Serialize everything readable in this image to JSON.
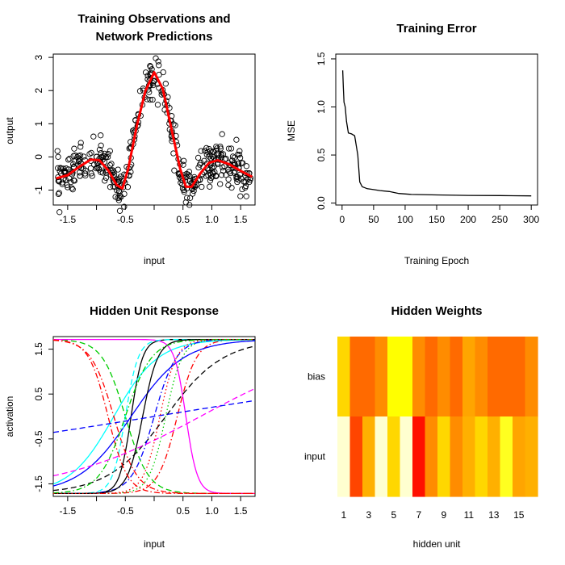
{
  "chart_data": [
    {
      "type": "scatter",
      "title_lines": [
        "Training Observations and",
        "Network Predictions"
      ],
      "xlabel": "input",
      "ylabel": "output",
      "xlim": [
        -1.75,
        1.75
      ],
      "ylim": [
        -1.45,
        3.1
      ],
      "xticks": [
        -1.5,
        -1.0,
        -0.5,
        0.0,
        0.5,
        1.0,
        1.5
      ],
      "xtick_labels": [
        "-1.5",
        "",
        "-0.5",
        "",
        "0.5",
        "1.0",
        "1.5"
      ],
      "yticks": [
        -1,
        0,
        1,
        2,
        3
      ],
      "ytick_labels": [
        "-1",
        "0",
        "1",
        "2",
        "3"
      ],
      "series": [
        {
          "kind": "prediction-line",
          "color": "#ff0000",
          "x": [
            -1.7,
            -1.5,
            -1.3,
            -1.1,
            -0.95,
            -0.8,
            -0.65,
            -0.55,
            -0.45,
            -0.3,
            -0.15,
            0.0,
            0.15,
            0.3,
            0.45,
            0.55,
            0.65,
            0.8,
            0.95,
            1.1,
            1.3,
            1.5,
            1.7
          ],
          "y": [
            -0.65,
            -0.55,
            -0.3,
            -0.08,
            -0.1,
            -0.4,
            -0.85,
            -0.95,
            -0.35,
            0.95,
            2.0,
            2.55,
            2.05,
            0.85,
            -0.35,
            -0.9,
            -0.9,
            -0.5,
            -0.18,
            -0.1,
            -0.22,
            -0.42,
            -0.6
          ]
        }
      ]
    },
    {
      "type": "line",
      "title": "Training Error",
      "xlabel": "Training Epoch",
      "ylabel": "MSE",
      "xlim": [
        -10,
        310
      ],
      "ylim": [
        -0.02,
        1.55
      ],
      "xticks": [
        0,
        50,
        100,
        150,
        200,
        250,
        300
      ],
      "yticks": [
        0.0,
        0.5,
        1.0,
        1.5
      ],
      "ytick_labels": [
        "0.0",
        "0.5",
        "1.0",
        "1.5"
      ],
      "x": [
        1,
        2,
        3,
        5,
        7,
        10,
        15,
        20,
        25,
        28,
        32,
        40,
        50,
        60,
        75,
        90,
        110,
        150,
        200,
        250,
        300
      ],
      "y": [
        1.38,
        1.2,
        1.05,
        1.0,
        0.85,
        0.73,
        0.72,
        0.7,
        0.5,
        0.22,
        0.17,
        0.15,
        0.14,
        0.13,
        0.12,
        0.1,
        0.09,
        0.085,
        0.08,
        0.078,
        0.075
      ]
    },
    {
      "type": "line",
      "title": "Hidden Unit Response",
      "xlabel": "input",
      "ylabel": "activation",
      "xlim": [
        -1.75,
        1.75
      ],
      "ylim": [
        -1.78,
        1.78
      ],
      "xticks": [
        -1.5,
        -1.0,
        -0.5,
        0.0,
        0.5,
        1.0,
        1.5
      ],
      "xtick_labels": [
        "-1.5",
        "",
        "-0.5",
        "",
        "0.5",
        "1.0",
        "1.5"
      ],
      "yticks": [
        -1.5,
        -0.5,
        0.5,
        1.5
      ],
      "ytick_labels": [
        "-1.5",
        "-0.5",
        "0.5",
        "1.5"
      ],
      "curves": [
        {
          "color": "#000000",
          "dash": "solid",
          "slope": 5.0,
          "center": -0.4
        },
        {
          "color": "#ff0000",
          "dash": "dashdot",
          "slope": 3.0,
          "center": 0.4
        },
        {
          "color": "#00cd00",
          "dash": "dashed",
          "slope": -2.5,
          "center": -0.5
        },
        {
          "color": "#0000ff",
          "dash": "solid",
          "slope": 1.1,
          "center": -0.4
        },
        {
          "color": "#00ffff",
          "dash": "solid",
          "slope": 1.3,
          "center": -0.7
        },
        {
          "color": "#ff00ff",
          "dash": "solid",
          "slope": -5.0,
          "center": 0.55
        },
        {
          "color": "#000000",
          "dash": "dashed",
          "slope": 1.0,
          "center": 0.2
        },
        {
          "color": "#ff0000",
          "dash": "dashdot",
          "slope": -2.5,
          "center": -0.7
        },
        {
          "color": "#00cd00",
          "dash": "dotted",
          "slope": 3.5,
          "center": 0.2
        },
        {
          "color": "#0000ff",
          "dash": "dashdot",
          "slope": 2.6,
          "center": 0.0
        },
        {
          "color": "#00ffff",
          "dash": "dashed",
          "slope": 4.5,
          "center": -0.5
        },
        {
          "color": "#ff00ff",
          "dash": "dashed",
          "slope": 0.4,
          "center": 0.8
        },
        {
          "color": "#000000",
          "dash": "solid",
          "slope": 3.8,
          "center": -0.2
        },
        {
          "color": "#ff0000",
          "dash": "dashdot",
          "slope": -3.0,
          "center": -0.8
        },
        {
          "color": "#00cd00",
          "dash": "dashdot",
          "slope": 2.2,
          "center": -0.5
        },
        {
          "color": "#0000ff",
          "dash": "dashed",
          "slope": 0.12,
          "center": 0.0
        },
        {
          "color": "#ff0000",
          "dash": "dotted",
          "slope": 3.5,
          "center": 0.1
        }
      ]
    },
    {
      "type": "heatmap",
      "title": "Hidden Weights",
      "xlabel": "hidden unit",
      "rows": [
        "bias",
        "input"
      ],
      "columns": [
        1,
        2,
        3,
        4,
        5,
        6,
        7,
        8,
        9,
        10,
        11,
        12,
        13,
        14,
        15,
        16
      ],
      "xtick_labels": [
        "1",
        "3",
        "5",
        "7",
        "9",
        "11",
        "13",
        "15"
      ],
      "xtick_positions": [
        1,
        3,
        5,
        7,
        9,
        11,
        13,
        15
      ],
      "colors": {
        "bias": [
          "#ffd700",
          "#ff6a00",
          "#ff6a00",
          "#ff8c00",
          "#ffff00",
          "#ffff00",
          "#ff8c00",
          "#ff6a00",
          "#ff8c00",
          "#ff6a00",
          "#ffa500",
          "#ff8c00",
          "#ff6a00",
          "#ff6a00",
          "#ff6a00",
          "#ff8c00"
        ],
        "input": [
          "#ffffd0",
          "#ff4500",
          "#ffb000",
          "#ffffd0",
          "#ffd700",
          "#ffffd0",
          "#ff1000",
          "#ff8c00",
          "#ffd700",
          "#ff8c00",
          "#ffb000",
          "#ffd700",
          "#ffb000",
          "#ffff20",
          "#ffa500",
          "#ffb000"
        ]
      }
    }
  ]
}
